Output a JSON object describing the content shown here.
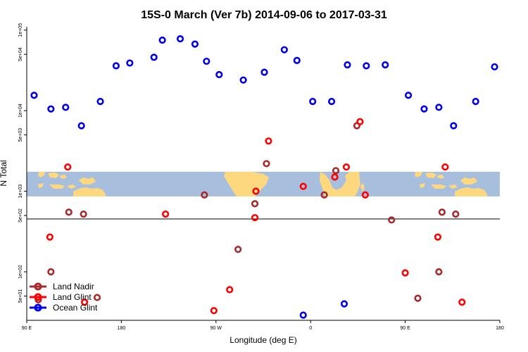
{
  "chart_data": {
    "type": "scatter",
    "title": "15S-0 March (Ver 7b)   2014-09-06 to 2017-03-31",
    "xlabel": "Longitude (deg E)",
    "ylabel": "N Total",
    "x_scale": "linear",
    "y_scale": "log",
    "xlim": [
      90,
      540
    ],
    "ylim": [
      25,
      110000
    ],
    "x_ticks": [
      {
        "value": 90,
        "label": "90 E"
      },
      {
        "value": 180,
        "label": "180"
      },
      {
        "value": 270,
        "label": "90 W"
      },
      {
        "value": 360,
        "label": "0"
      },
      {
        "value": 450,
        "label": "90 E"
      },
      {
        "value": 540,
        "label": "180"
      }
    ],
    "y_ticks_upper": [
      {
        "value": 1000,
        "label": "1e+03"
      },
      {
        "value": 5000,
        "label": "5e+03"
      },
      {
        "value": 10000,
        "label": "1e+04"
      },
      {
        "value": 50000,
        "label": "5e+04"
      },
      {
        "value": 100000,
        "label": "1e+05"
      }
    ],
    "y_ticks_lower": [
      {
        "value": 50,
        "label": "5e+01"
      },
      {
        "value": 100,
        "label": "1e+02"
      },
      {
        "value": 500,
        "label": "5e+02"
      }
    ],
    "background_map": "world map strip (ocean blue, land tan) spanning the full longitude range",
    "grid": false,
    "legend_position": "bottom-left",
    "series": [
      {
        "name": "Land Nadir",
        "color": "#a52a2a",
        "points": [
          {
            "x": 101,
            "y": 45
          },
          {
            "x": 113,
            "y": 100
          },
          {
            "x": 130,
            "y": 550
          },
          {
            "x": 144,
            "y": 520
          },
          {
            "x": 157,
            "y": 48
          },
          {
            "x": 259,
            "y": 900
          },
          {
            "x": 291,
            "y": 190
          },
          {
            "x": 307,
            "y": 700
          },
          {
            "x": 318,
            "y": 2200
          },
          {
            "x": 373,
            "y": 900
          },
          {
            "x": 384,
            "y": 1800
          },
          {
            "x": 404,
            "y": 6500
          },
          {
            "x": 437,
            "y": 440
          },
          {
            "x": 482,
            "y": 100
          },
          {
            "x": 462,
            "y": 47
          },
          {
            "x": 485,
            "y": 550
          },
          {
            "x": 498,
            "y": 520
          }
        ]
      },
      {
        "name": "Land Glint",
        "color": "#ff0000",
        "points": [
          {
            "x": 112,
            "y": 270
          },
          {
            "x": 129,
            "y": 2000
          },
          {
            "x": 145,
            "y": 42
          },
          {
            "x": 222,
            "y": 520
          },
          {
            "x": 268,
            "y": 33
          },
          {
            "x": 283,
            "y": 60
          },
          {
            "x": 308,
            "y": 1000
          },
          {
            "x": 307,
            "y": 470
          },
          {
            "x": 320,
            "y": 4200
          },
          {
            "x": 353,
            "y": 1150
          },
          {
            "x": 383,
            "y": 1500
          },
          {
            "x": 394,
            "y": 2000
          },
          {
            "x": 412,
            "y": 900
          },
          {
            "x": 407,
            "y": 7300
          },
          {
            "x": 450,
            "y": 97
          },
          {
            "x": 481,
            "y": 270
          },
          {
            "x": 488,
            "y": 2000
          },
          {
            "x": 504,
            "y": 42
          }
        ]
      },
      {
        "name": "Ocean Glint",
        "color": "#0000ee",
        "points": [
          {
            "x": 97,
            "y": 15500
          },
          {
            "x": 113,
            "y": 10500
          },
          {
            "x": 127,
            "y": 11000
          },
          {
            "x": 142,
            "y": 6500
          },
          {
            "x": 160,
            "y": 13000
          },
          {
            "x": 175,
            "y": 36000
          },
          {
            "x": 188,
            "y": 39000
          },
          {
            "x": 211,
            "y": 46000
          },
          {
            "x": 219,
            "y": 75000
          },
          {
            "x": 236,
            "y": 78000
          },
          {
            "x": 250,
            "y": 67000
          },
          {
            "x": 261,
            "y": 41000
          },
          {
            "x": 273,
            "y": 28000
          },
          {
            "x": 296,
            "y": 24000
          },
          {
            "x": 316,
            "y": 30000
          },
          {
            "x": 335,
            "y": 57000
          },
          {
            "x": 347,
            "y": 42000
          },
          {
            "x": 362,
            "y": 13000
          },
          {
            "x": 353,
            "y": 29
          },
          {
            "x": 392,
            "y": 40
          },
          {
            "x": 380,
            "y": 13000
          },
          {
            "x": 395,
            "y": 37000
          },
          {
            "x": 413,
            "y": 36000
          },
          {
            "x": 431,
            "y": 37000
          },
          {
            "x": 453,
            "y": 15500
          },
          {
            "x": 468,
            "y": 10500
          },
          {
            "x": 482,
            "y": 11000
          },
          {
            "x": 496,
            "y": 6500
          },
          {
            "x": 517,
            "y": 13000
          },
          {
            "x": 535,
            "y": 35000
          }
        ]
      }
    ]
  }
}
